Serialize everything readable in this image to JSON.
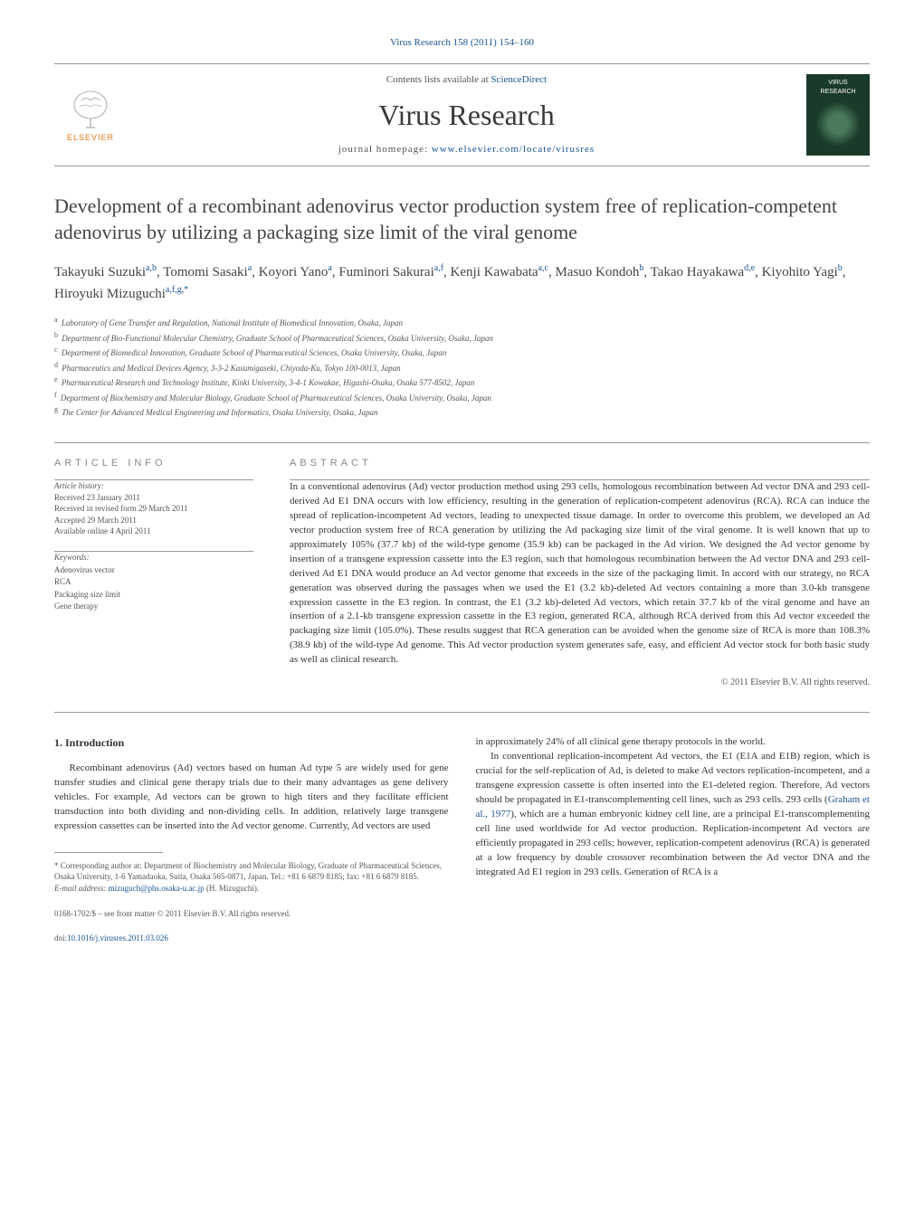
{
  "journal_header": "Virus Research 158 (2011) 154–160",
  "banner": {
    "contents_prefix": "Contents lists available at ",
    "contents_link": "ScienceDirect",
    "journal_title": "Virus Research",
    "homepage_prefix": "journal homepage: ",
    "homepage_link": "www.elsevier.com/locate/virusres",
    "elsevier_label": "ELSEVIER",
    "cover_label": "VIRUS RESEARCH"
  },
  "title": "Development of a recombinant adenovirus vector production system free of replication-competent adenovirus by utilizing a packaging size limit of the viral genome",
  "authors_html": "Takayuki Suzuki<sup>a,b</sup>, Tomomi Sasaki<sup>a</sup>, Koyori Yano<sup>a</sup>, Fuminori Sakurai<sup>a,f</sup>, Kenji Kawabata<sup>a,c</sup>, Masuo Kondoh<sup>b</sup>, Takao Hayakawa<sup>d,e</sup>, Kiyohito Yagi<sup>b</sup>, Hiroyuki Mizuguchi<sup>a,f,g,*</sup>",
  "affiliations": [
    {
      "sup": "a",
      "text": "Laboratory of Gene Transfer and Regulation, National Institute of Biomedical Innovation, Osaka, Japan"
    },
    {
      "sup": "b",
      "text": "Department of Bio-Functional Molecular Chemistry, Graduate School of Pharmaceutical Sciences, Osaka University, Osaka, Japan"
    },
    {
      "sup": "c",
      "text": "Department of Biomedical Innovation, Graduate School of Pharmaceutical Sciences, Osaka University, Osaka, Japan"
    },
    {
      "sup": "d",
      "text": "Pharmaceutics and Medical Devices Agency, 3-3-2 Kasumigaseki, Chiyoda-Ku, Tokyo 100-0013, Japan"
    },
    {
      "sup": "e",
      "text": "Pharmaceutical Research and Technology Institute, Kinki University, 3-4-1 Kowakae, Higashi-Osaka, Osaka 577-8502, Japan"
    },
    {
      "sup": "f",
      "text": "Department of Biochemistry and Molecular Biology, Graduate School of Pharmaceutical Sciences, Osaka University, Osaka, Japan"
    },
    {
      "sup": "g",
      "text": "The Center for Advanced Medical Engineering and Informatics, Osaka University, Osaka, Japan"
    }
  ],
  "article_info": {
    "label": "ARTICLE INFO",
    "history_head": "Article history:",
    "history": [
      "Received 23 January 2011",
      "Received in revised form 29 March 2011",
      "Accepted 29 March 2011",
      "Available online 4 April 2011"
    ],
    "keywords_head": "Keywords:",
    "keywords": [
      "Adenovirus vector",
      "RCA",
      "Packaging size limit",
      "Gene therapy"
    ]
  },
  "abstract": {
    "label": "ABSTRACT",
    "text": "In a conventional adenovirus (Ad) vector production method using 293 cells, homologous recombination between Ad vector DNA and 293 cell-derived Ad E1 DNA occurs with low efficiency, resulting in the generation of replication-competent adenovirus (RCA). RCA can induce the spread of replication-incompetent Ad vectors, leading to unexpected tissue damage. In order to overcome this problem, we developed an Ad vector production system free of RCA generation by utilizing the Ad packaging size limit of the viral genome. It is well known that up to approximately 105% (37.7 kb) of the wild-type genome (35.9 kb) can be packaged in the Ad virion. We designed the Ad vector genome by insertion of a transgene expression cassette into the E3 region, such that homologous recombination between the Ad vector DNA and 293 cell-derived Ad E1 DNA would produce an Ad vector genome that exceeds in the size of the packaging limit. In accord with our strategy, no RCA generation was observed during the passages when we used the E1 (3.2 kb)-deleted Ad vectors containing a more than 3.0-kb transgene expression cassette in the E3 region. In contrast, the E1 (3.2 kb)-deleted Ad vectors, which retain 37.7 kb of the viral genome and have an insertion of a 2.1-kb transgene expression cassette in the E3 region, generated RCA, although RCA derived from this Ad vector exceeded the packaging size limit (105.0%). These results suggest that RCA generation can be avoided when the genome size of RCA is more than 108.3% (38.9 kb) of the wild-type Ad genome. This Ad vector production system generates safe, easy, and efficient Ad vector stock for both basic study as well as clinical research.",
    "copyright": "© 2011 Elsevier B.V. All rights reserved."
  },
  "body": {
    "section_heading": "1. Introduction",
    "left_paras": [
      "Recombinant adenovirus (Ad) vectors based on human Ad type 5 are widely used for gene transfer studies and clinical gene therapy trials due to their many advantages as gene delivery vehicles. For example, Ad vectors can be grown to high titers and they facilitate efficient transduction into both dividing and non-dividing cells. In addition, relatively large transgene expression cassettes can be inserted into the Ad vector genome. Currently, Ad vectors are used"
    ],
    "right_paras": [
      "in approximately 24% of all clinical gene therapy protocols in the world.",
      "In conventional replication-incompetent Ad vectors, the E1 (E1A and E1B) region, which is crucial for the self-replication of Ad, is deleted to make Ad vectors replication-incompetent, and a transgene expression cassette is often inserted into the E1-deleted region. Therefore, Ad vectors should be propagated in E1-transcomplementing cell lines, such as 293 cells. 293 cells (Graham et al., 1977), which are a human embryonic kidney cell line, are a principal E1-transcomplementing cell line used worldwide for Ad vector production. Replication-incompetent Ad vectors are efficiently propagated in 293 cells; however, replication-competent adenovirus (RCA) is generated at a low frequency by double crossover recombination between the Ad vector DNA and the integrated Ad E1 region in 293 cells. Generation of RCA is a"
    ]
  },
  "footnote": {
    "corresponding": "* Corresponding author at: Department of Biochemistry and Molecular Biology, Graduate of Pharmaceutical Sciences, Osaka University, 1-6 Yamadaoka, Suita, Osaka 565-0871, Japan. Tel.: +81 6 6879 8185; fax: +81 6 6879 8185.",
    "email_label": "E-mail address: ",
    "email": "mizuguch@phs.osaka-u.ac.jp",
    "email_suffix": " (H. Mizuguchi)."
  },
  "footer": {
    "issn": "0168-1702/$ – see front matter © 2011 Elsevier B.V. All rights reserved.",
    "doi_label": "doi:",
    "doi": "10.1016/j.virusres.2011.03.026"
  },
  "colors": {
    "link": "#1a5490",
    "text": "#333333",
    "muted": "#555555",
    "elsevier": "#e67817"
  }
}
